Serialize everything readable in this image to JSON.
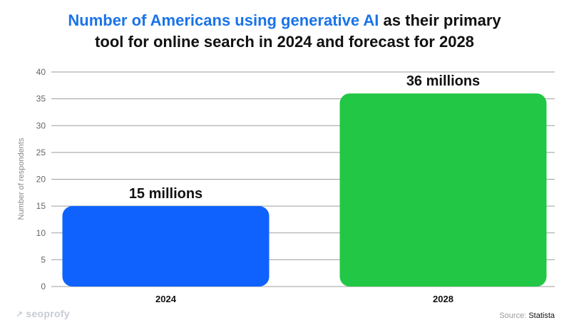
{
  "title": {
    "highlight": "Number of Americans using generative AI",
    "rest_line1": " as their primary",
    "line2": "tool for online search in 2024 and forecast for 2028"
  },
  "colors": {
    "highlight": "#1a73e8",
    "bar_2024": "#0f62fe",
    "bar_2028": "#22c745",
    "grid": "#9e9e9e"
  },
  "chart_data": {
    "type": "bar",
    "title": "Number of Americans using generative AI as their primary tool for online search in 2024 and forecast for 2028",
    "categories": [
      "2024",
      "2028"
    ],
    "values": [
      15,
      36
    ],
    "data_labels": [
      "15 millions",
      "36 millions"
    ],
    "xlabel": "",
    "ylabel": "Number of respondents",
    "ylim": [
      0,
      40
    ],
    "yticks": [
      0,
      5,
      10,
      15,
      20,
      25,
      30,
      35,
      40
    ],
    "grid": true,
    "legend": "none"
  },
  "brand": {
    "icon": "arrow-up-right-icon",
    "name": "seoprofy"
  },
  "source": {
    "label": "Source:",
    "value": "Statista"
  }
}
